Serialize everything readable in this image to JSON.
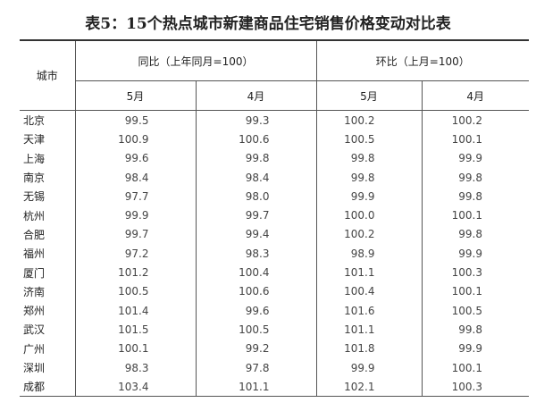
{
  "header": {
    "title": "表5：15个热点城市新建商品住宅销售价格变动对比表"
  },
  "table": {
    "city_header": "城市",
    "groups": [
      "同比（上年同月=100）",
      "环比（上月=100）"
    ],
    "months": [
      "5月",
      "4月",
      "5月",
      "4月"
    ],
    "rows": [
      [
        "北京",
        "99.5",
        "99.3",
        "100.2",
        "100.2"
      ],
      [
        "天津",
        "100.9",
        "100.6",
        "100.5",
        "100.1"
      ],
      [
        "上海",
        "99.6",
        "99.8",
        "99.8",
        "99.9"
      ],
      [
        "南京",
        "98.4",
        "98.4",
        "99.8",
        "99.8"
      ],
      [
        "无锡",
        "97.7",
        "98.0",
        "99.9",
        "99.8"
      ],
      [
        "杭州",
        "99.9",
        "99.7",
        "100.0",
        "100.1"
      ],
      [
        "合肥",
        "99.7",
        "99.4",
        "100.2",
        "99.8"
      ],
      [
        "福州",
        "97.2",
        "98.3",
        "98.9",
        "99.9"
      ],
      [
        "厦门",
        "101.2",
        "100.4",
        "101.1",
        "100.3"
      ],
      [
        "济南",
        "100.5",
        "100.6",
        "100.4",
        "100.1"
      ],
      [
        "郑州",
        "101.4",
        "99.6",
        "101.6",
        "100.5"
      ],
      [
        "武汉",
        "101.5",
        "100.5",
        "101.1",
        "99.8"
      ],
      [
        "广州",
        "100.1",
        "99.2",
        "101.8",
        "99.9"
      ],
      [
        "深圳",
        "98.3",
        "97.8",
        "99.9",
        "100.1"
      ],
      [
        "成都",
        "103.4",
        "101.1",
        "102.1",
        "100.3"
      ]
    ]
  }
}
